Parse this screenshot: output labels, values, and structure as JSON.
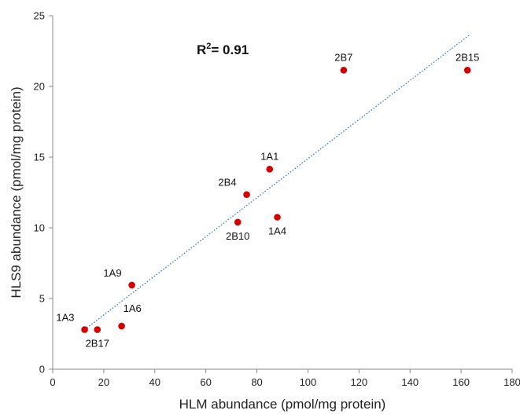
{
  "chart_data": {
    "type": "scatter",
    "xlabel": "HLM abundance (pmol/mg protein)",
    "ylabel": "HLS9 abundance (pmol/mg protein)",
    "xlim": [
      0,
      180
    ],
    "ylim": [
      0,
      25
    ],
    "x_ticks": [
      0,
      20,
      40,
      60,
      80,
      100,
      120,
      140,
      160,
      180
    ],
    "y_ticks": [
      0,
      5,
      10,
      15,
      20,
      25
    ],
    "annotation": {
      "prefix": "R",
      "sup": "2",
      "suffix": "= 0.91"
    },
    "grid": false,
    "legend": "none",
    "marker_color": "#d40000",
    "trendline": {
      "style": "dotted",
      "color": "#2e75b6",
      "x_start": 12.5,
      "x_end": 163,
      "y_start": 2.8,
      "y_end": 23.6
    },
    "points": [
      {
        "label": "1A3",
        "x": 12.5,
        "y": 2.8,
        "label_pos": "above-left"
      },
      {
        "label": "2B17",
        "x": 17.5,
        "y": 2.8,
        "label_pos": "below"
      },
      {
        "label": "1A6",
        "x": 27,
        "y": 3.05,
        "label_pos": "above-right"
      },
      {
        "label": "1A9",
        "x": 31,
        "y": 5.95,
        "label_pos": "above-left"
      },
      {
        "label": "2B10",
        "x": 72.5,
        "y": 10.4,
        "label_pos": "below"
      },
      {
        "label": "2B4",
        "x": 76,
        "y": 12.35,
        "label_pos": "above-left"
      },
      {
        "label": "1A1",
        "x": 85,
        "y": 14.15,
        "label_pos": "above"
      },
      {
        "label": "1A4",
        "x": 88,
        "y": 10.75,
        "label_pos": "below"
      },
      {
        "label": "2B7",
        "x": 114,
        "y": 21.15,
        "label_pos": "above"
      },
      {
        "label": "2B15",
        "x": 162.5,
        "y": 21.15,
        "label_pos": "above"
      }
    ]
  }
}
